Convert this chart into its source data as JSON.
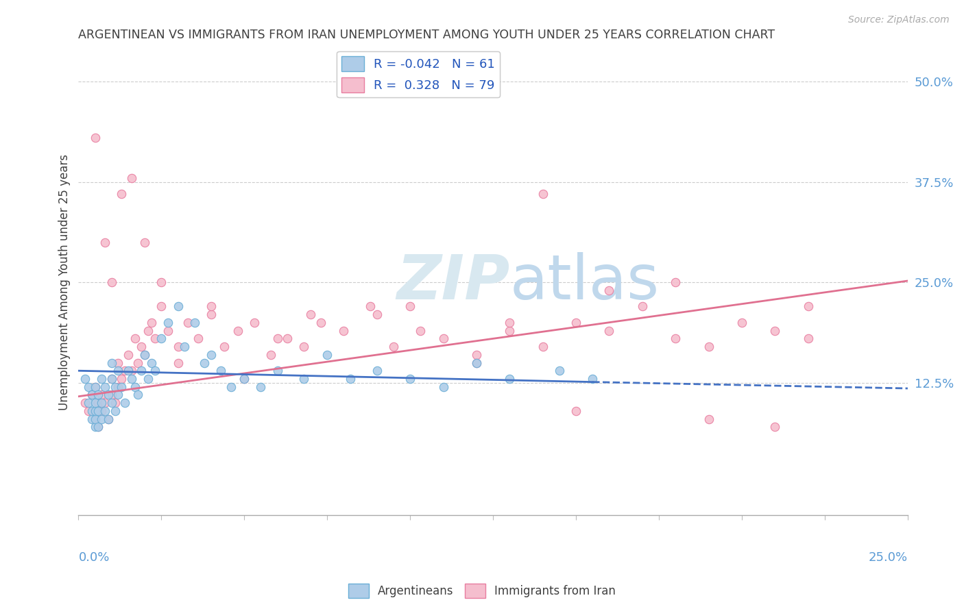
{
  "title": "ARGENTINEAN VS IMMIGRANTS FROM IRAN UNEMPLOYMENT AMONG YOUTH UNDER 25 YEARS CORRELATION CHART",
  "source": "Source: ZipAtlas.com",
  "ylabel": "Unemployment Among Youth under 25 years",
  "xlim": [
    0.0,
    0.25
  ],
  "ylim": [
    -0.04,
    0.54
  ],
  "blue_color": "#aecce8",
  "pink_color": "#f5bece",
  "blue_edge_color": "#6aaed6",
  "pink_edge_color": "#e87da0",
  "blue_line_color": "#4472c4",
  "pink_line_color": "#e07090",
  "title_color": "#404040",
  "axis_label_color": "#5b9bd5",
  "watermark_color": "#d8e8f0",
  "R_argentinean": -0.042,
  "N_argentinean": 61,
  "R_iran": 0.328,
  "N_iran": 79,
  "trend_blue_x0": 0.0,
  "trend_blue_x1": 0.155,
  "trend_blue_y0": 0.14,
  "trend_blue_y1": 0.126,
  "trend_blue_dash_x0": 0.155,
  "trend_blue_dash_x1": 0.25,
  "trend_blue_dash_y0": 0.126,
  "trend_blue_dash_y1": 0.118,
  "trend_pink_x0": 0.0,
  "trend_pink_x1": 0.25,
  "trend_pink_y0": 0.108,
  "trend_pink_y1": 0.252,
  "argentineans_x": [
    0.002,
    0.003,
    0.003,
    0.004,
    0.004,
    0.004,
    0.005,
    0.005,
    0.005,
    0.005,
    0.005,
    0.006,
    0.006,
    0.006,
    0.007,
    0.007,
    0.007,
    0.008,
    0.008,
    0.009,
    0.009,
    0.01,
    0.01,
    0.01,
    0.011,
    0.011,
    0.012,
    0.012,
    0.013,
    0.014,
    0.015,
    0.016,
    0.017,
    0.018,
    0.019,
    0.02,
    0.021,
    0.022,
    0.023,
    0.025,
    0.027,
    0.03,
    0.032,
    0.035,
    0.038,
    0.04,
    0.043,
    0.046,
    0.05,
    0.055,
    0.06,
    0.068,
    0.075,
    0.082,
    0.09,
    0.1,
    0.11,
    0.12,
    0.13,
    0.145,
    0.155
  ],
  "argentineans_y": [
    0.13,
    0.1,
    0.12,
    0.08,
    0.09,
    0.11,
    0.07,
    0.08,
    0.09,
    0.1,
    0.12,
    0.07,
    0.09,
    0.11,
    0.08,
    0.1,
    0.13,
    0.09,
    0.12,
    0.08,
    0.11,
    0.1,
    0.13,
    0.15,
    0.09,
    0.12,
    0.11,
    0.14,
    0.12,
    0.1,
    0.14,
    0.13,
    0.12,
    0.11,
    0.14,
    0.16,
    0.13,
    0.15,
    0.14,
    0.18,
    0.2,
    0.22,
    0.17,
    0.2,
    0.15,
    0.16,
    0.14,
    0.12,
    0.13,
    0.12,
    0.14,
    0.13,
    0.16,
    0.13,
    0.14,
    0.13,
    0.12,
    0.15,
    0.13,
    0.14,
    0.13
  ],
  "iran_x": [
    0.002,
    0.003,
    0.004,
    0.005,
    0.005,
    0.006,
    0.006,
    0.007,
    0.007,
    0.008,
    0.009,
    0.01,
    0.01,
    0.011,
    0.012,
    0.012,
    0.013,
    0.014,
    0.015,
    0.016,
    0.017,
    0.018,
    0.019,
    0.02,
    0.021,
    0.022,
    0.023,
    0.025,
    0.027,
    0.03,
    0.033,
    0.036,
    0.04,
    0.044,
    0.048,
    0.053,
    0.058,
    0.063,
    0.068,
    0.073,
    0.08,
    0.088,
    0.095,
    0.103,
    0.11,
    0.12,
    0.13,
    0.14,
    0.15,
    0.16,
    0.17,
    0.18,
    0.19,
    0.2,
    0.21,
    0.22,
    0.03,
    0.06,
    0.09,
    0.12,
    0.15,
    0.18,
    0.005,
    0.008,
    0.01,
    0.013,
    0.016,
    0.02,
    0.025,
    0.04,
    0.07,
    0.1,
    0.13,
    0.16,
    0.19,
    0.22,
    0.05,
    0.14,
    0.21
  ],
  "iran_y": [
    0.1,
    0.09,
    0.11,
    0.08,
    0.12,
    0.07,
    0.1,
    0.09,
    0.11,
    0.1,
    0.08,
    0.11,
    0.13,
    0.1,
    0.12,
    0.15,
    0.13,
    0.14,
    0.16,
    0.14,
    0.18,
    0.15,
    0.17,
    0.16,
    0.19,
    0.2,
    0.18,
    0.22,
    0.19,
    0.17,
    0.2,
    0.18,
    0.21,
    0.17,
    0.19,
    0.2,
    0.16,
    0.18,
    0.17,
    0.2,
    0.19,
    0.22,
    0.17,
    0.19,
    0.18,
    0.16,
    0.19,
    0.17,
    0.2,
    0.19,
    0.22,
    0.18,
    0.17,
    0.2,
    0.19,
    0.22,
    0.15,
    0.18,
    0.21,
    0.15,
    0.09,
    0.25,
    0.43,
    0.3,
    0.25,
    0.36,
    0.38,
    0.3,
    0.25,
    0.22,
    0.21,
    0.22,
    0.2,
    0.24,
    0.08,
    0.18,
    0.13,
    0.36,
    0.07
  ]
}
